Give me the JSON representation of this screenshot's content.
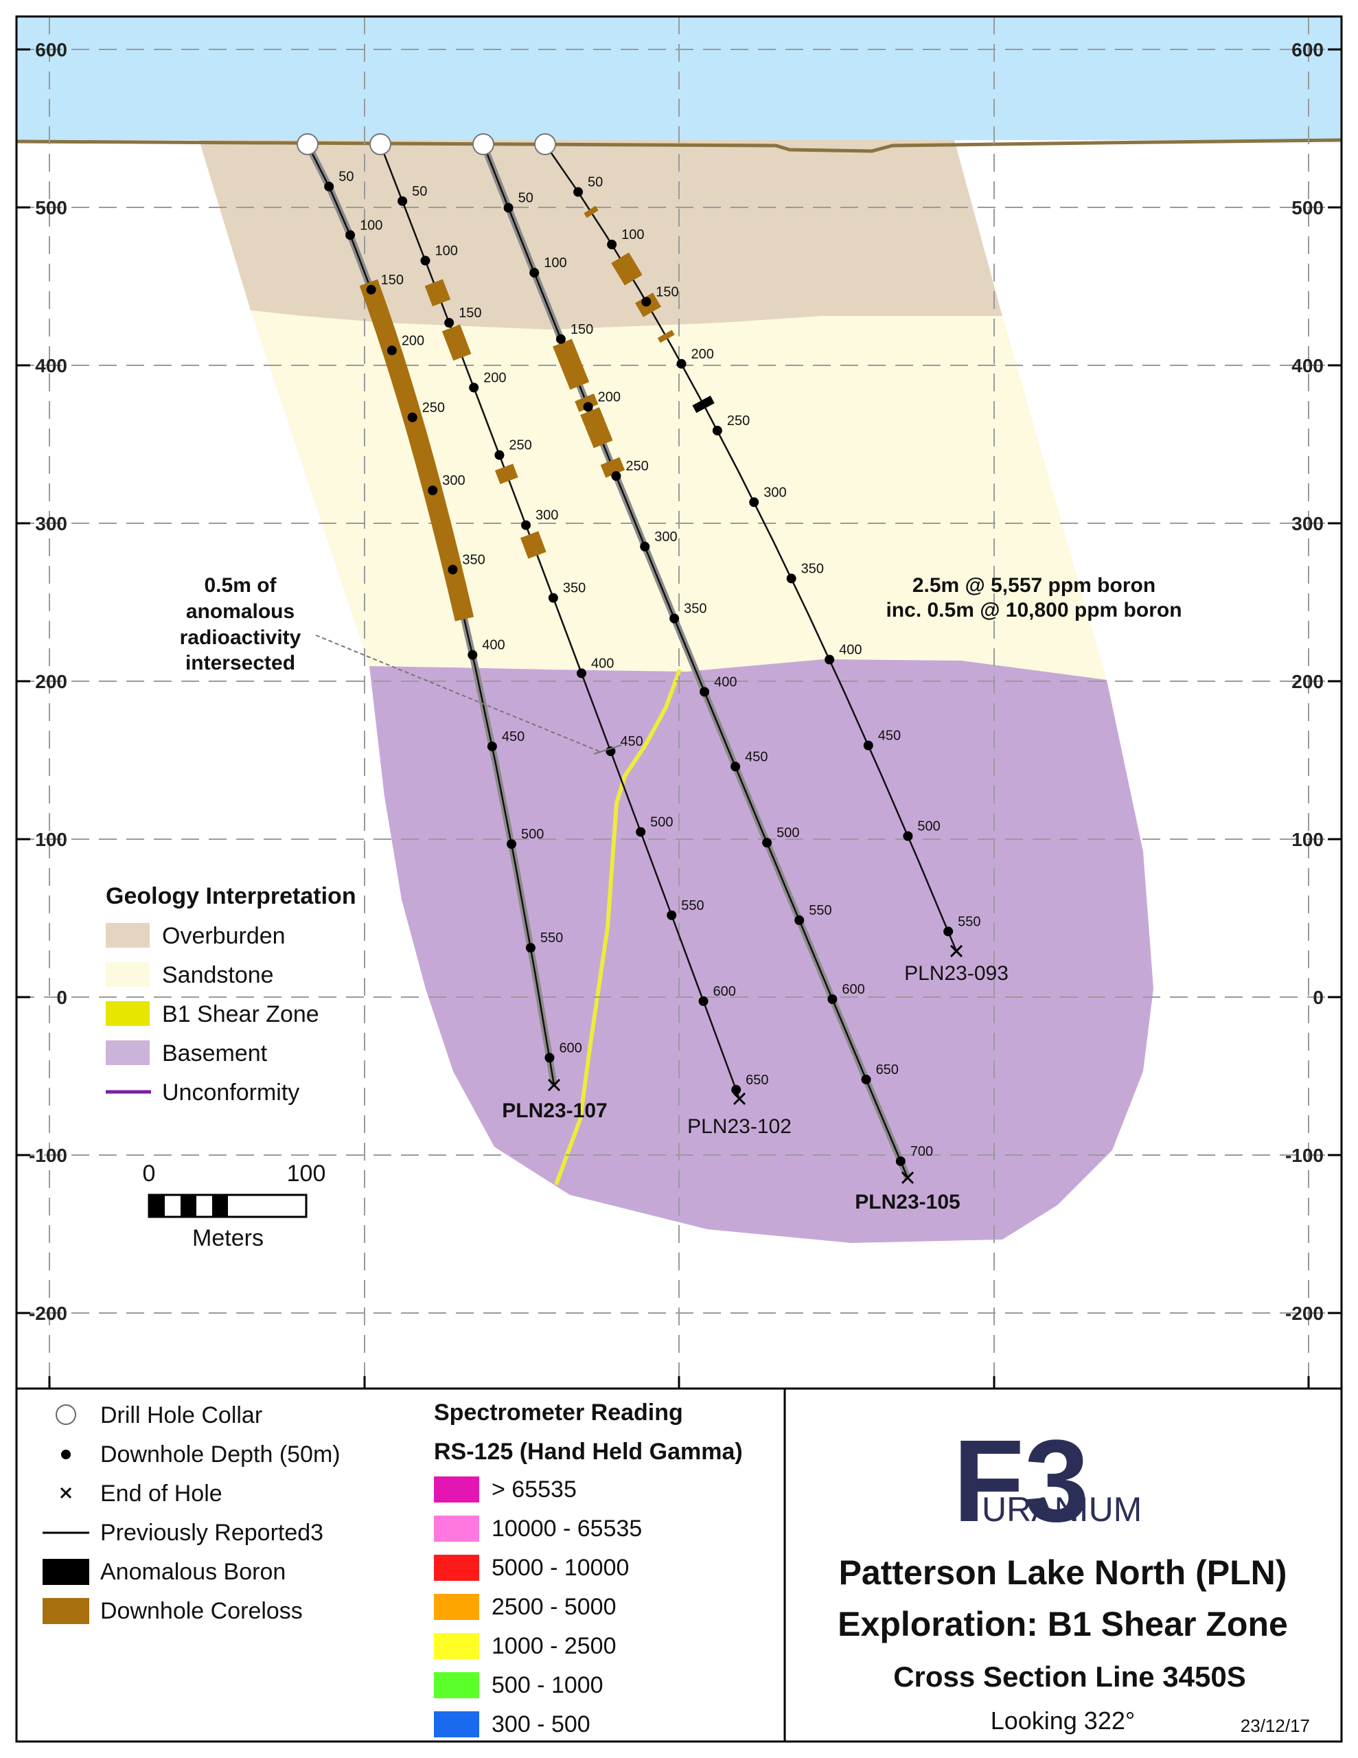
{
  "figure": {
    "axis_labels": [
      "600",
      "500",
      "400",
      "300",
      "200",
      "100",
      "0",
      "-100",
      "-200"
    ],
    "axis_values": [
      600,
      500,
      400,
      300,
      200,
      100,
      0,
      -100,
      -200
    ],
    "depth_markers": [
      "50",
      "100",
      "150",
      "200",
      "250",
      "300",
      "350",
      "400",
      "450",
      "500",
      "550",
      "600",
      "650",
      "700"
    ]
  },
  "layers": [
    {
      "name": "lake",
      "color": "#bfe6fb"
    },
    {
      "name": "overburden",
      "color": "#e3d5c0"
    },
    {
      "name": "sandstone",
      "color": "#fdfae0"
    },
    {
      "name": "basement",
      "color": "#c6a8d6"
    },
    {
      "name": "b1-shear-zone",
      "color": "#ecec3c"
    }
  ],
  "drill_holes": [
    {
      "id": "PLN23-107",
      "label": "PLN23-107",
      "bold": true,
      "total_depth_m": 612
    },
    {
      "id": "PLN23-102",
      "label": "PLN23-102",
      "bold": false,
      "total_depth_m": 655
    },
    {
      "id": "PLN23-105",
      "label": "PLN23-105",
      "bold": true,
      "total_depth_m": 710
    },
    {
      "id": "PLN23-093",
      "label": "PLN23-093",
      "bold": false,
      "total_depth_m": 560
    }
  ],
  "annotations": {
    "radioactivity": [
      "0.5m of",
      "anomalous",
      "radioactivity",
      "intersected"
    ],
    "boron_line1": "2.5m @ 5,557 ppm boron",
    "boron_line2": "inc. 0.5m @ 10,800 ppm boron"
  },
  "geology_legend": {
    "title": "Geology Interpretation",
    "items": [
      {
        "label": "Overburden",
        "color": "#e3d5c0"
      },
      {
        "label": "Sandstone",
        "color": "#fdfae0"
      },
      {
        "label": "B1 Shear Zone",
        "color": "#e6e600"
      },
      {
        "label": "Basement",
        "color": "#cbb3da"
      },
      {
        "label": "Unconformity",
        "color": "#7a1fa0"
      }
    ]
  },
  "scale_bar": {
    "min_label": "0",
    "max_label": "100",
    "units": "Meters"
  },
  "symbols_legend": [
    {
      "label": "Drill Hole Collar",
      "icon": "collar-circle-icon"
    },
    {
      "label": "Downhole Depth (50m)",
      "icon": "depth-dot-icon"
    },
    {
      "label": "End of Hole",
      "icon": "end-of-hole-x-icon"
    },
    {
      "label": "Previously Reported3",
      "icon": "line-icon"
    },
    {
      "label": "Anomalous Boron",
      "icon": "black-swatch-icon",
      "color": "#000000"
    },
    {
      "label": "Downhole Coreloss",
      "icon": "brown-swatch-icon",
      "color": "#a8700f"
    }
  ],
  "spectrometer_legend": {
    "title": "Spectrometer Reading",
    "subtitle": "RS-125 (Hand Held Gamma)",
    "items": [
      {
        "label": "> 65535",
        "color": "#e316b4"
      },
      {
        "label": "10000 - 65535",
        "color": "#ff78e0"
      },
      {
        "label": "5000 - 10000",
        "color": "#ff1a1a"
      },
      {
        "label": "2500 - 5000",
        "color": "#ffa500"
      },
      {
        "label": "1000 - 2500",
        "color": "#ffff26"
      },
      {
        "label": "500 - 1000",
        "color": "#5dff2a"
      },
      {
        "label": "300 - 500",
        "color": "#1a6af0"
      }
    ]
  },
  "title_block": {
    "logo_text": "F3",
    "logo_subtext": "URANIUM",
    "title_line1": "Patterson Lake North (PLN)",
    "title_line2": "Exploration: B1 Shear Zone",
    "title_line3": "Cross Section Line 3450S",
    "looking": "Looking 322°",
    "date": "23/12/17"
  }
}
